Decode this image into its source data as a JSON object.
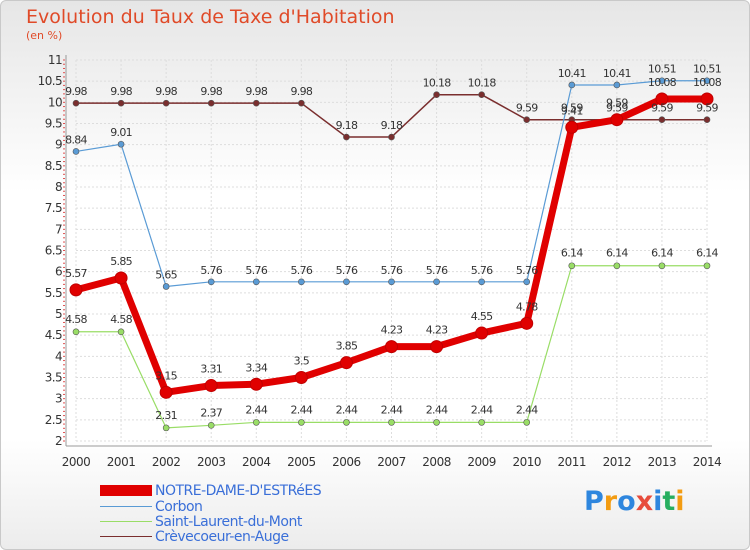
{
  "title": "Evolution du Taux de Taxe d'Habitation",
  "subtitle": "(en %)",
  "brand": {
    "letters": [
      "P",
      "r",
      "o",
      "x",
      "i",
      "t",
      "i"
    ],
    "colors": [
      "#2e86de",
      "#f39c12",
      "#2e86de",
      "#e74c3c",
      "#2e86de",
      "#27ae60",
      "#f39c12"
    ]
  },
  "chart_data": {
    "type": "line",
    "x": [
      2000,
      2001,
      2002,
      2003,
      2004,
      2005,
      2006,
      2007,
      2008,
      2009,
      2010,
      2011,
      2012,
      2013,
      2014
    ],
    "ylim": [
      2,
      11
    ],
    "yticks": [
      "2",
      "2.5",
      "3",
      "3.5",
      "4",
      "4.5",
      "5",
      "5.5",
      "6",
      "6.5",
      "7",
      "7.5",
      "8",
      "8.5",
      "9",
      "9.5",
      "10",
      "10.5",
      "11"
    ],
    "grid": true,
    "legend_position": "bottom-left",
    "series": [
      {
        "name": "NOTRE-DAME-D'ESTRéES",
        "color": "#e00000",
        "values": [
          5.57,
          5.85,
          3.15,
          3.31,
          3.34,
          3.5,
          3.85,
          4.23,
          4.23,
          4.55,
          4.78,
          9.41,
          9.59,
          10.08,
          10.08
        ],
        "labels": [
          "5.57",
          "5.85",
          "3.15",
          "3.31",
          "3.34",
          "3.5",
          "3.85",
          "4.23",
          "4.23",
          "4.55",
          "4.78",
          "9.41",
          "9.59",
          "10.08",
          "10.08"
        ]
      },
      {
        "name": "Corbon",
        "color": "#5a9bd5",
        "values": [
          8.84,
          9.01,
          5.65,
          5.76,
          5.76,
          5.76,
          5.76,
          5.76,
          5.76,
          5.76,
          5.76,
          10.41,
          10.41,
          10.51,
          10.51
        ],
        "labels": [
          "8.84",
          "9.01",
          "5.65",
          "5.76",
          "5.76",
          "5.76",
          "5.76",
          "5.76",
          "5.76",
          "5.76",
          "5.76",
          "10.41",
          "10.41",
          "10.51",
          "10.51"
        ]
      },
      {
        "name": "Saint-Laurent-du-Mont",
        "color": "#99dd66",
        "values": [
          4.58,
          4.58,
          2.31,
          2.37,
          2.44,
          2.44,
          2.44,
          2.44,
          2.44,
          2.44,
          2.44,
          6.14,
          6.14,
          6.14,
          6.14
        ],
        "labels": [
          "4.58",
          "4.58",
          "2.31",
          "2.37",
          "2.44",
          "2.44",
          "2.44",
          "2.44",
          "2.44",
          "2.44",
          "2.44",
          "6.14",
          "6.14",
          "6.14",
          "6.14"
        ]
      },
      {
        "name": "Crèvecoeur-en-Auge",
        "color": "#7a2e2e",
        "values": [
          9.98,
          9.98,
          9.98,
          9.98,
          9.98,
          9.98,
          9.18,
          9.18,
          10.18,
          10.18,
          9.59,
          9.59,
          9.59,
          9.59,
          9.59
        ],
        "labels": [
          "9.98",
          "9.98",
          "9.98",
          "9.98",
          "9.98",
          "9.98",
          "9.18",
          "9.18",
          "10.18",
          "10.18",
          "9.59",
          "9.59",
          "9.59",
          "9.59",
          "9.59"
        ]
      }
    ]
  }
}
